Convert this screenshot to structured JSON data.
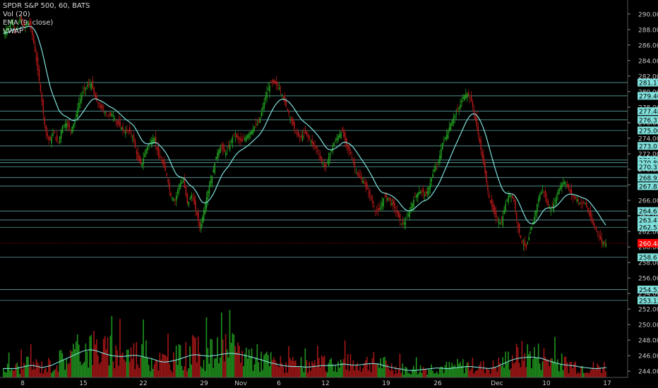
{
  "legend": {
    "title": "SPDR S&P 500, 60, BATS",
    "vol": "Vol (20)",
    "ema": "EMA (9, close)",
    "vwap": "VWAP"
  },
  "chart_data": {
    "type": "candlestick",
    "title": "SPDR S&P 500, 60, BATS",
    "y_axis_ticks": [
      290,
      288,
      286,
      284,
      282,
      280,
      278,
      276,
      274,
      272,
      270,
      268,
      266,
      264,
      262,
      260,
      258,
      256,
      254,
      252,
      250,
      248,
      246,
      244
    ],
    "ylim": [
      243.2,
      291.8
    ],
    "x_ticks": [
      "8",
      "15",
      "22",
      "29",
      "Nov",
      "6",
      "12",
      "19",
      "26",
      "Dec",
      "10",
      "17"
    ],
    "horizontal_levels": [
      281.17,
      279.46,
      277.48,
      276.37,
      275.0,
      273.01,
      271.19,
      270.86,
      270.31,
      268.93,
      267.83,
      264.63,
      263.47,
      262.53,
      258.67,
      254.52,
      253.12
    ],
    "current_price": 260.48,
    "price_path": [
      287.5,
      288.2,
      289.0,
      287.8,
      289.5,
      288.0,
      289.2,
      287.0,
      283.5,
      279.5,
      275.0,
      273.5,
      274.8,
      273.2,
      275.5,
      276.0,
      275.0,
      276.2,
      278.5,
      280.0,
      280.8,
      281.0,
      279.0,
      278.0,
      277.6,
      276.8,
      277.2,
      276.0,
      275.5,
      274.8,
      275.0,
      274.0,
      271.5,
      270.5,
      272.5,
      273.5,
      274.2,
      271.8,
      270.8,
      269.3,
      266.5,
      266.0,
      268.0,
      268.6,
      265.5,
      266.8,
      264.6,
      262.4,
      265.0,
      267.5,
      269.5,
      272.0,
      273.0,
      272.0,
      273.0,
      274.5,
      274.0,
      273.5,
      274.2,
      274.8,
      275.5,
      276.0,
      278.0,
      280.0,
      281.2,
      281.0,
      280.5,
      279.0,
      277.5,
      276.0,
      274.5,
      274.0,
      274.8,
      274.0,
      273.2,
      272.5,
      271.0,
      270.2,
      272.0,
      273.3,
      274.3,
      274.9,
      273.0,
      272.0,
      270.2,
      269.0,
      268.5,
      267.3,
      266.0,
      264.5,
      264.8,
      266.5,
      266.3,
      265.5,
      264.5,
      263.0,
      263.1,
      264.5,
      266.0,
      267.0,
      267.2,
      266.5,
      268.2,
      270.0,
      271.0,
      273.5,
      274.5,
      276.0,
      277.0,
      278.0,
      279.5,
      279.8,
      278.5,
      276.0,
      273.0,
      270.0,
      266.5,
      264.8,
      263.5,
      263.0,
      265.5,
      267.0,
      266.0,
      262.5,
      260.5,
      260.0,
      262.0,
      264.0,
      266.5,
      267.5,
      265.5,
      264.8,
      266.2,
      267.8,
      268.5,
      267.6,
      266.5,
      266.2,
      265.5,
      265.8,
      264.2,
      262.8,
      262.0,
      260.6,
      260.48
    ],
    "volume_ylim": [
      0,
      1
    ],
    "volume_ma_path": [
      0.09,
      0.09,
      0.09,
      0.09,
      0.1,
      0.11,
      0.12,
      0.12,
      0.11,
      0.1,
      0.11,
      0.12,
      0.14,
      0.16,
      0.18,
      0.2,
      0.22,
      0.24,
      0.26,
      0.275,
      0.28,
      0.275,
      0.26,
      0.245,
      0.23,
      0.22,
      0.215,
      0.21,
      0.215,
      0.22,
      0.225,
      0.22,
      0.21,
      0.2,
      0.19,
      0.175,
      0.16,
      0.155,
      0.16,
      0.17,
      0.18,
      0.195,
      0.21,
      0.225,
      0.23,
      0.225,
      0.22,
      0.215,
      0.22,
      0.225,
      0.235,
      0.24,
      0.245,
      0.24,
      0.235,
      0.225,
      0.215,
      0.205,
      0.19,
      0.18,
      0.165,
      0.15,
      0.14,
      0.13,
      0.12,
      0.115,
      0.11,
      0.11,
      0.11,
      0.105,
      0.105,
      0.11,
      0.115,
      0.12,
      0.12,
      0.12,
      0.125,
      0.13,
      0.135,
      0.13,
      0.125,
      0.125,
      0.13,
      0.135,
      0.14,
      0.14,
      0.135,
      0.12,
      0.11,
      0.1,
      0.09,
      0.085,
      0.075,
      0.07,
      0.07,
      0.075,
      0.08,
      0.085,
      0.09,
      0.095,
      0.095,
      0.09,
      0.09,
      0.095,
      0.1,
      0.105,
      0.11,
      0.11,
      0.105,
      0.1,
      0.095,
      0.09,
      0.095,
      0.11,
      0.13,
      0.15,
      0.17,
      0.185,
      0.195,
      0.2,
      0.205,
      0.205,
      0.2,
      0.195,
      0.18,
      0.165,
      0.15,
      0.14,
      0.13,
      0.125,
      0.12,
      0.115,
      0.105,
      0.1,
      0.095,
      0.09,
      0.09,
      0.095,
      0.1
    ],
    "colors": {
      "background": "#000000",
      "up": "#22a020",
      "down": "#b01818",
      "ema_line": "#7fe0dc",
      "vwap_line": "#7fe0dc",
      "level_line": "#7fe0dc",
      "axis_text": "#c8c8c8",
      "price_label": "#ff0000"
    }
  }
}
